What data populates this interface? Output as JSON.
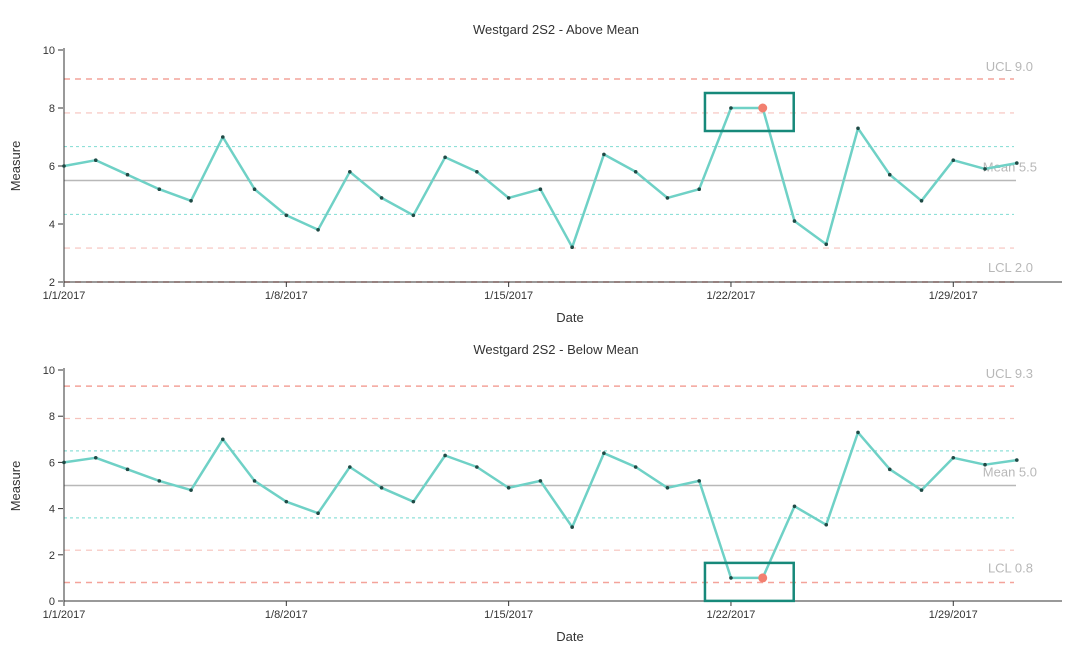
{
  "chart_data": [
    {
      "type": "line",
      "title": "Westgard 2S2 - Above Mean",
      "xlabel": "Date",
      "ylabel": "Measure",
      "ylim": [
        2,
        10
      ],
      "yticks": [
        "2",
        "4",
        "6",
        "8",
        "10"
      ],
      "xticks": [
        "1/1/2017",
        "1/8/2017",
        "1/15/2017",
        "1/22/2017",
        "1/29/2017"
      ],
      "x": [
        "1/1/2017",
        "1/2/2017",
        "1/3/2017",
        "1/4/2017",
        "1/5/2017",
        "1/6/2017",
        "1/7/2017",
        "1/8/2017",
        "1/9/2017",
        "1/10/2017",
        "1/11/2017",
        "1/12/2017",
        "1/13/2017",
        "1/14/2017",
        "1/15/2017",
        "1/16/2017",
        "1/17/2017",
        "1/18/2017",
        "1/19/2017",
        "1/20/2017",
        "1/21/2017",
        "1/22/2017",
        "1/23/2017",
        "1/24/2017",
        "1/25/2017",
        "1/26/2017",
        "1/27/2017",
        "1/28/2017",
        "1/29/2017",
        "1/30/2017",
        "1/31/2017"
      ],
      "values": [
        6.0,
        6.2,
        5.7,
        5.2,
        4.8,
        7.0,
        5.2,
        4.3,
        3.8,
        5.8,
        4.9,
        4.3,
        6.3,
        5.8,
        4.9,
        5.2,
        3.2,
        6.4,
        5.8,
        4.9,
        5.2,
        8.0,
        8.0,
        4.1,
        3.3,
        7.3,
        5.7,
        4.8,
        6.2,
        5.9,
        6.1
      ],
      "violation_points": [
        "1/23/2017"
      ],
      "violation_box": [
        "1/22/2017",
        "1/23/2017"
      ],
      "mean": 5.5,
      "ucl": 9.0,
      "lcl": 2.0,
      "sd1": [
        4.33,
        6.67
      ],
      "sd2": [
        3.17,
        7.83
      ],
      "mean_label": "Mean 5.5",
      "ucl_label": "UCL 9.0",
      "lcl_label": "LCL 2.0"
    },
    {
      "type": "line",
      "title": "Westgard 2S2 - Below Mean",
      "xlabel": "Date",
      "ylabel": "Measure",
      "ylim": [
        0,
        10
      ],
      "yticks": [
        "0",
        "2",
        "4",
        "6",
        "8",
        "10"
      ],
      "xticks": [
        "1/1/2017",
        "1/8/2017",
        "1/15/2017",
        "1/22/2017",
        "1/29/2017"
      ],
      "x": [
        "1/1/2017",
        "1/2/2017",
        "1/3/2017",
        "1/4/2017",
        "1/5/2017",
        "1/6/2017",
        "1/7/2017",
        "1/8/2017",
        "1/9/2017",
        "1/10/2017",
        "1/11/2017",
        "1/12/2017",
        "1/13/2017",
        "1/14/2017",
        "1/15/2017",
        "1/16/2017",
        "1/17/2017",
        "1/18/2017",
        "1/19/2017",
        "1/20/2017",
        "1/21/2017",
        "1/22/2017",
        "1/23/2017",
        "1/24/2017",
        "1/25/2017",
        "1/26/2017",
        "1/27/2017",
        "1/28/2017",
        "1/29/2017",
        "1/30/2017",
        "1/31/2017"
      ],
      "values": [
        6.0,
        6.2,
        5.7,
        5.2,
        4.8,
        7.0,
        5.2,
        4.3,
        3.8,
        5.8,
        4.9,
        4.3,
        6.3,
        5.8,
        4.9,
        5.2,
        3.2,
        6.4,
        5.8,
        4.9,
        5.2,
        1.0,
        1.0,
        4.1,
        3.3,
        7.3,
        5.7,
        4.8,
        6.2,
        5.9,
        6.1
      ],
      "violation_points": [
        "1/23/2017"
      ],
      "violation_box": [
        "1/22/2017",
        "1/23/2017"
      ],
      "mean": 5.0,
      "ucl": 9.3,
      "lcl": 0.8,
      "sd1": [
        3.6,
        6.5
      ],
      "sd2": [
        2.2,
        7.9
      ],
      "mean_label": "Mean 5.0",
      "ucl_label": "UCL 9.3",
      "lcl_label": "LCL 0.8"
    }
  ],
  "colors": {
    "series": "#6fd1c6",
    "point": "#1f4a45",
    "violation_point": "#f28070",
    "violation_box": "#17897a",
    "mean_line": "#b8b8b8",
    "control_limit": "#f4a39a",
    "sd2_line": "#f6c2bc",
    "sd1_line": "#8fe0d8",
    "axis": "#333333"
  }
}
